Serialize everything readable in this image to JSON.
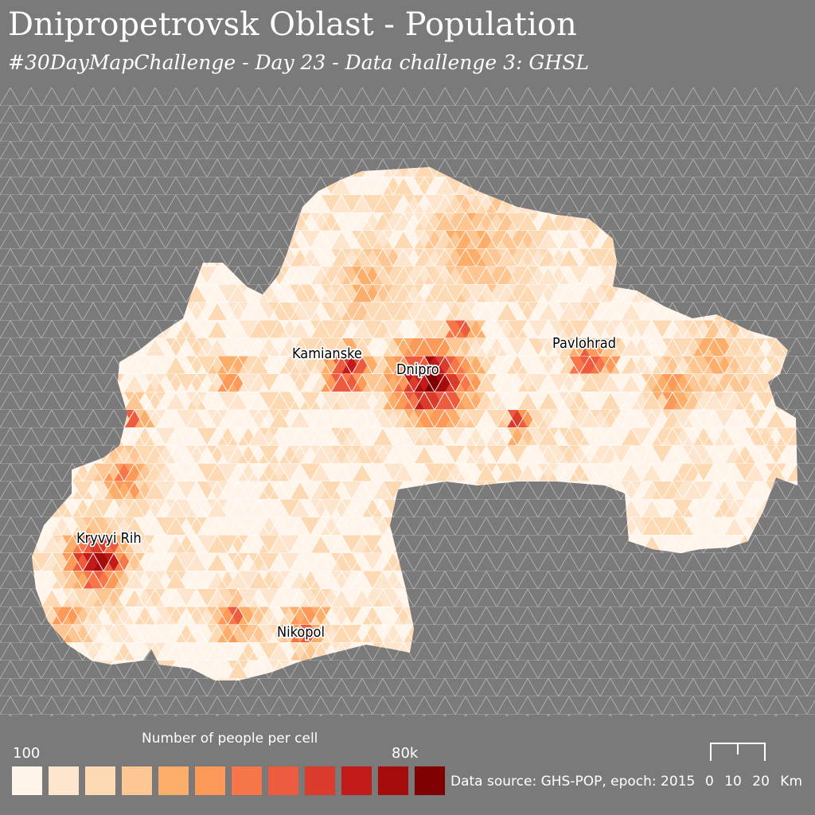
{
  "header": {
    "title": "Dnipropetrovsk Oblast - Population",
    "subtitle": "#30DayMapChallenge - Day 23 - Data challenge 3: GHSL"
  },
  "cities": [
    "Kamianske",
    "Dnipro",
    "Pavlohrad",
    "Kryvyi Rih",
    "Nikopol"
  ],
  "legend": {
    "title": "Number of people per cell",
    "min_label": "100",
    "max_label": "80k",
    "colors": [
      "#fff5eb",
      "#fee6ce",
      "#fdd9b4",
      "#fdc692",
      "#fdae6b",
      "#fd9a5a",
      "#f8774a",
      "#ee5c3f",
      "#db3b2b",
      "#c31a1a",
      "#a70c0c",
      "#7f0000"
    ]
  },
  "source": "Data source: GHS-POP, epoch: 2015",
  "scale": {
    "labels": "0 10 20 Km"
  },
  "colors": {
    "background": "#7a7a7a",
    "grid": "#b9b9b9"
  }
}
